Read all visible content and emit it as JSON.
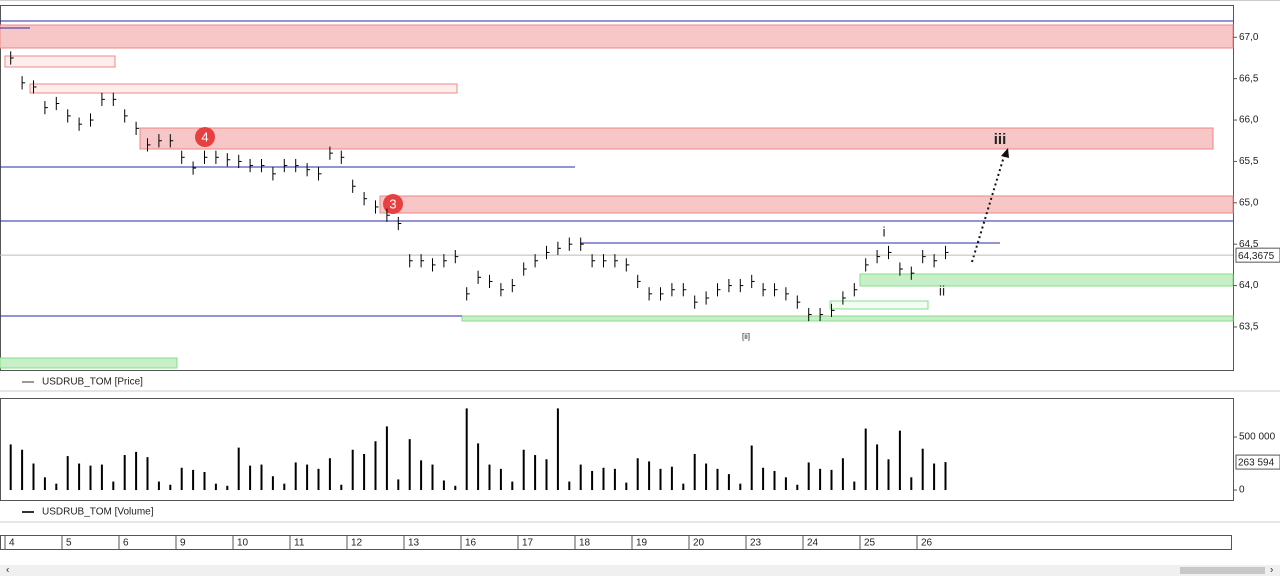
{
  "chart_data": [
    {
      "type": "ohlc",
      "categories": [
        "4",
        null,
        null,
        null,
        null,
        "5",
        null,
        null,
        null,
        null,
        "6",
        null,
        null,
        null,
        null,
        "9",
        null,
        null,
        null,
        null,
        "10",
        null,
        null,
        null,
        null,
        "11",
        null,
        null,
        null,
        null,
        "12",
        null,
        null,
        null,
        null,
        "13",
        null,
        null,
        null,
        null,
        "16",
        null,
        null,
        null,
        null,
        "17",
        null,
        null,
        null,
        null,
        "18",
        null,
        null,
        null,
        null,
        "19",
        null,
        null,
        null,
        null,
        "20",
        null,
        null,
        null,
        null,
        "23",
        null,
        null,
        null,
        null,
        "24",
        null,
        null,
        null,
        null,
        "25",
        null,
        null,
        null,
        null,
        "26",
        null,
        null
      ],
      "series": [
        {
          "name": "USDRUB_TOM [Price]",
          "color": "#000000",
          "high": [
            66.83,
            66.53,
            66.48,
            66.23,
            66.28,
            66.13,
            66.03,
            66.08,
            66.33,
            66.33,
            66.13,
            65.98,
            65.78,
            65.83,
            65.83,
            65.63,
            65.5,
            65.63,
            65.63,
            65.6,
            65.58,
            65.53,
            65.53,
            65.43,
            65.53,
            65.53,
            65.48,
            65.43,
            65.68,
            65.63,
            65.28,
            65.13,
            65.03,
            64.93,
            64.83,
            64.38,
            64.38,
            64.33,
            64.38,
            64.43,
            63.98,
            64.18,
            64.13,
            64.03,
            64.08,
            64.28,
            64.38,
            64.48,
            64.53,
            64.58,
            64.58,
            64.38,
            64.38,
            64.38,
            64.33,
            64.13,
            63.98,
            63.98,
            64.03,
            64.03,
            63.88,
            63.93,
            64.03,
            64.08,
            64.08,
            64.13,
            64.03,
            64.03,
            63.98,
            63.88,
            63.73,
            63.73,
            63.78,
            63.93,
            64.03,
            64.33,
            64.43,
            64.48,
            64.28,
            64.23,
            64.43,
            64.38,
            64.48
          ],
          "low": [
            66.67,
            66.37,
            66.32,
            66.07,
            66.12,
            65.97,
            65.87,
            65.92,
            66.17,
            66.17,
            65.97,
            65.82,
            65.62,
            65.67,
            65.67,
            65.47,
            65.34,
            65.47,
            65.47,
            65.44,
            65.42,
            65.37,
            65.37,
            65.27,
            65.37,
            65.37,
            65.32,
            65.27,
            65.52,
            65.47,
            65.12,
            64.97,
            64.87,
            64.77,
            64.67,
            64.22,
            64.22,
            64.17,
            64.22,
            64.27,
            63.82,
            64.02,
            63.97,
            63.87,
            63.92,
            64.12,
            64.22,
            64.32,
            64.37,
            64.42,
            64.42,
            64.22,
            64.22,
            64.22,
            64.17,
            63.97,
            63.82,
            63.82,
            63.87,
            63.87,
            63.72,
            63.77,
            63.87,
            63.92,
            63.92,
            63.97,
            63.87,
            63.87,
            63.82,
            63.72,
            63.57,
            63.57,
            63.62,
            63.77,
            63.87,
            64.17,
            64.27,
            64.32,
            64.12,
            64.07,
            64.27,
            64.22,
            64.32
          ],
          "close": [
            66.75,
            66.45,
            66.4,
            66.15,
            66.2,
            66.05,
            65.95,
            66.0,
            66.25,
            66.25,
            66.05,
            65.9,
            65.7,
            65.75,
            65.75,
            65.55,
            65.42,
            65.55,
            65.55,
            65.52,
            65.5,
            65.45,
            65.45,
            65.35,
            65.45,
            65.45,
            65.4,
            65.35,
            65.6,
            65.55,
            65.2,
            65.05,
            64.95,
            64.85,
            64.75,
            64.3,
            64.3,
            64.25,
            64.3,
            64.35,
            63.9,
            64.1,
            64.05,
            63.95,
            64.0,
            64.2,
            64.3,
            64.4,
            64.45,
            64.5,
            64.5,
            64.3,
            64.3,
            64.3,
            64.25,
            64.05,
            63.9,
            63.9,
            63.95,
            63.95,
            63.8,
            63.85,
            63.95,
            64.0,
            64.0,
            64.05,
            63.95,
            63.95,
            63.9,
            63.8,
            63.65,
            63.65,
            63.7,
            63.85,
            63.95,
            64.25,
            64.35,
            64.4,
            64.2,
            64.15,
            64.35,
            64.3,
            64.4
          ]
        }
      ],
      "ylim": [
        62.98,
        67.39
      ],
      "yticks": [
        {
          "value": 63.5,
          "label": "63,5"
        },
        {
          "value": 64,
          "label": "64,0"
        },
        {
          "value": 64.5,
          "label": "64,5"
        },
        {
          "value": 65,
          "label": "65,0"
        },
        {
          "value": 65.5,
          "label": "65,5"
        },
        {
          "value": 66,
          "label": "66,0"
        },
        {
          "value": 66.5,
          "label": "66,5"
        },
        {
          "value": 67,
          "label": "67,0"
        }
      ],
      "last_value": {
        "value": 64.3675,
        "label": "64,3675"
      },
      "annotations": [
        "4",
        "3",
        "i",
        "ii",
        "iii",
        "[ii]"
      ]
    },
    {
      "type": "bar",
      "series": [
        {
          "name": "USDRUB_TOM [Volume]",
          "color": "#000000",
          "values": [
            430000,
            380000,
            250000,
            120000,
            60000,
            320000,
            250000,
            230000,
            240000,
            80000,
            330000,
            360000,
            310000,
            80000,
            50000,
            210000,
            190000,
            170000,
            60000,
            40000,
            400000,
            230000,
            240000,
            130000,
            60000,
            260000,
            240000,
            200000,
            300000,
            50000,
            380000,
            340000,
            460000,
            600000,
            100000,
            480000,
            280000,
            240000,
            90000,
            40000,
            770000,
            440000,
            240000,
            200000,
            80000,
            380000,
            330000,
            290000,
            770000,
            80000,
            240000,
            180000,
            210000,
            200000,
            70000,
            300000,
            270000,
            200000,
            220000,
            60000,
            340000,
            250000,
            200000,
            150000,
            60000,
            420000,
            210000,
            180000,
            120000,
            50000,
            260000,
            200000,
            190000,
            300000,
            80000,
            580000,
            430000,
            290000,
            560000,
            120000,
            390000,
            250000,
            263594
          ]
        }
      ],
      "ylim": [
        -94000,
        868000
      ],
      "yticks": [
        0,
        {
          "value": 500000,
          "label": "500 000"
        }
      ],
      "last_value": {
        "value": 263594,
        "label": "263 594"
      }
    }
  ]
}
